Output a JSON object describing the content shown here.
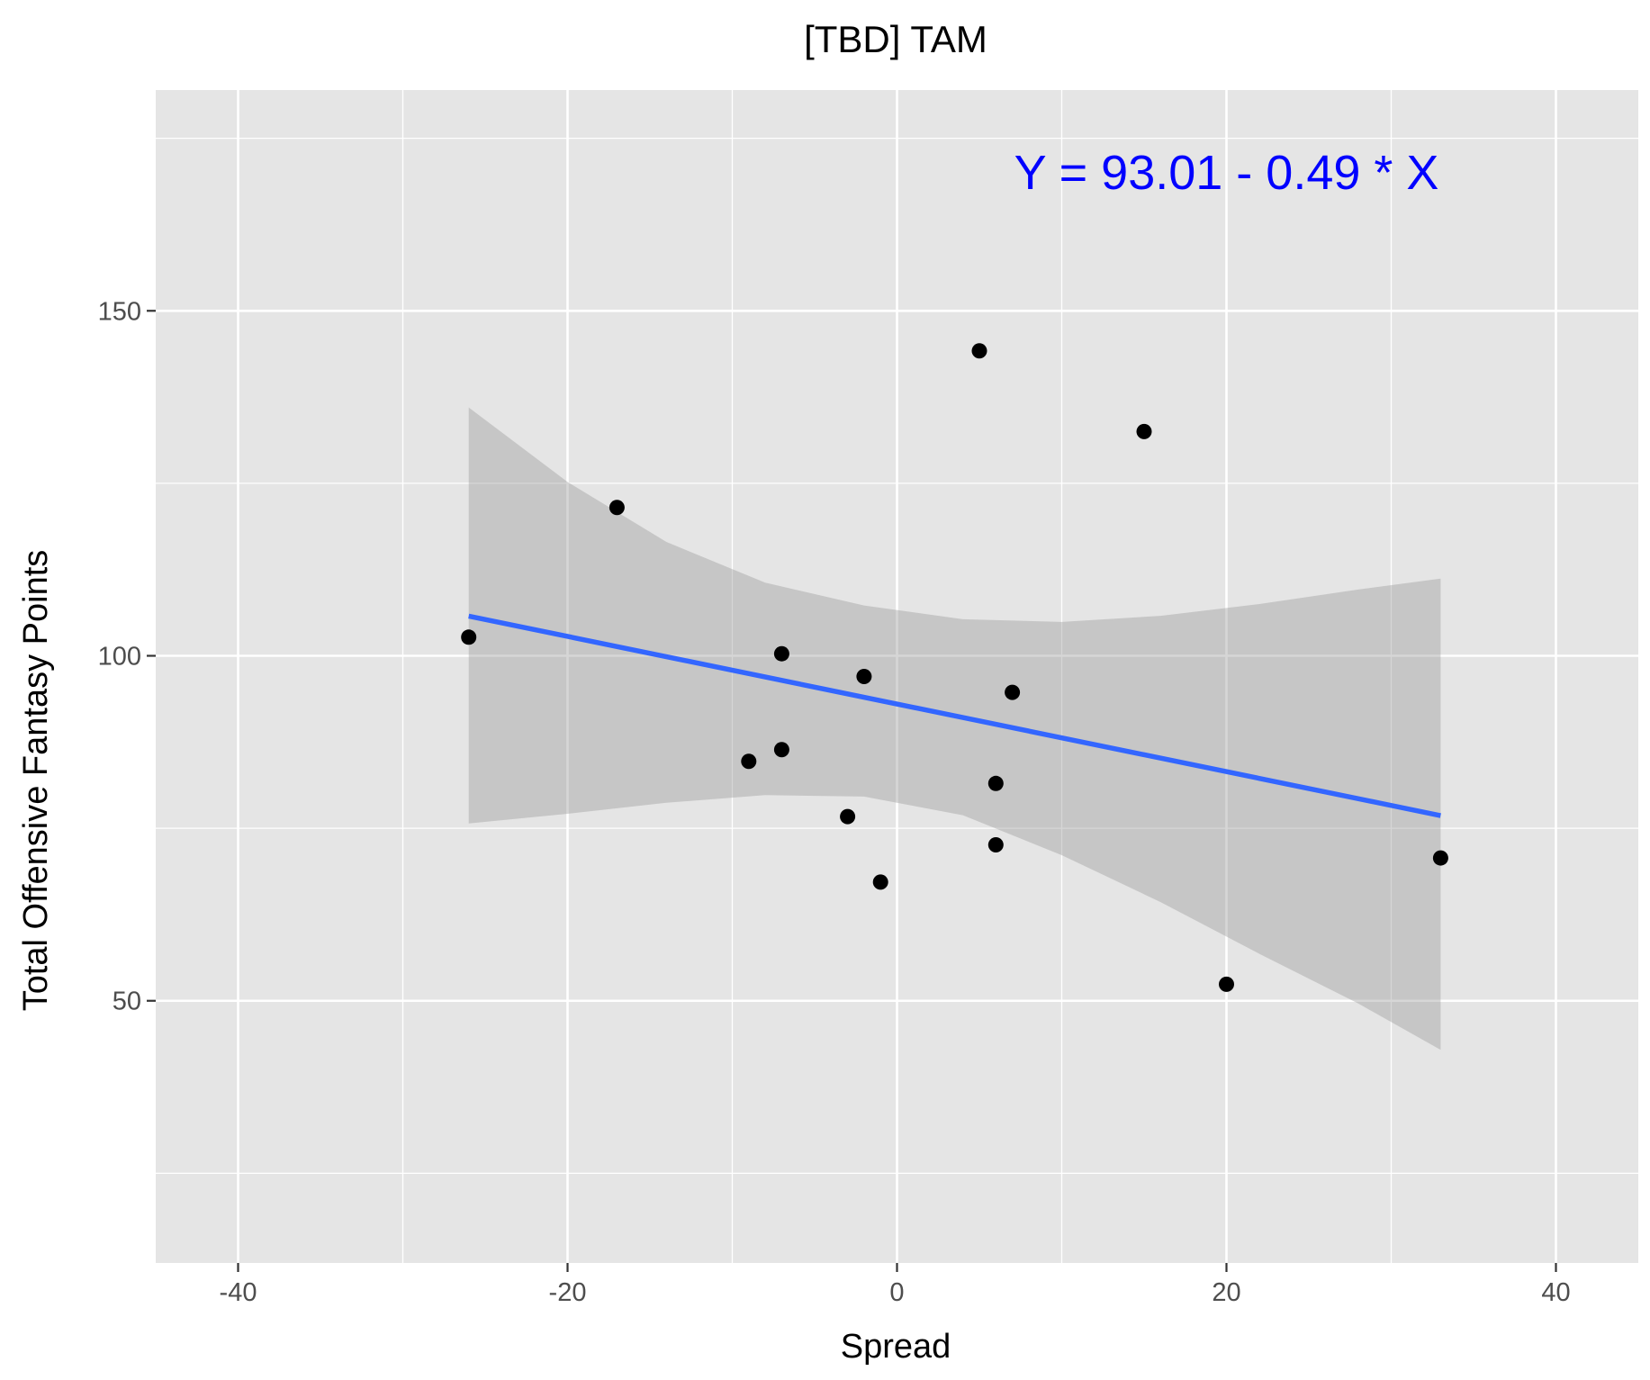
{
  "chart_data": {
    "type": "scatter",
    "title": "[TBD] TAM",
    "xlabel": "Spread",
    "ylabel": "Total Offensive Fantasy Points",
    "xlim": [
      -45,
      45
    ],
    "ylim": [
      12,
      182
    ],
    "x_ticks": [
      -40,
      -20,
      0,
      20,
      40
    ],
    "x_tick_labels": [
      "-40",
      "-20",
      "0",
      "20",
      "40"
    ],
    "x_minor": [
      -30,
      -10,
      10,
      30
    ],
    "y_ticks": [
      50,
      100,
      150
    ],
    "y_tick_labels": [
      "50",
      "100",
      "150"
    ],
    "y_minor": [
      25,
      75,
      125,
      175
    ],
    "grid": true,
    "annotation": "Y = 93.01 - 0.49 * X",
    "annotation_at": [
      20,
      170
    ],
    "annotation_color": "#0000ff",
    "points": [
      {
        "x": -26,
        "y": 102.7
      },
      {
        "x": -17,
        "y": 121.5
      },
      {
        "x": -9,
        "y": 84.7
      },
      {
        "x": -7,
        "y": 100.3
      },
      {
        "x": -7,
        "y": 86.4
      },
      {
        "x": -3,
        "y": 76.7
      },
      {
        "x": -2,
        "y": 97.0
      },
      {
        "x": -1,
        "y": 67.2
      },
      {
        "x": 5,
        "y": 144.2
      },
      {
        "x": 6,
        "y": 81.5
      },
      {
        "x": 6,
        "y": 72.6
      },
      {
        "x": 7,
        "y": 94.7
      },
      {
        "x": 15,
        "y": 132.5
      },
      {
        "x": 20,
        "y": 52.4
      },
      {
        "x": 33,
        "y": 70.7
      }
    ],
    "regression": {
      "intercept": 93.01,
      "slope": -0.49,
      "x_range": [
        -26,
        33
      ]
    },
    "confidence_band": {
      "x": [
        -26,
        -20,
        -14,
        -8,
        -2,
        4,
        10,
        16,
        22,
        28,
        33
      ],
      "upper": [
        136.0,
        125.2,
        116.5,
        110.6,
        107.3,
        105.3,
        104.9,
        105.8,
        107.5,
        109.6,
        111.2
      ],
      "lower": [
        75.7,
        77.1,
        78.7,
        79.8,
        79.6,
        76.9,
        71.1,
        64.3,
        56.8,
        49.6,
        42.9
      ]
    },
    "colors": {
      "panel": "#e5e5e5",
      "grid": "#ffffff",
      "point": "#000000",
      "line": "#3366ff",
      "band": "#999999",
      "annotation": "#0000ff"
    }
  }
}
